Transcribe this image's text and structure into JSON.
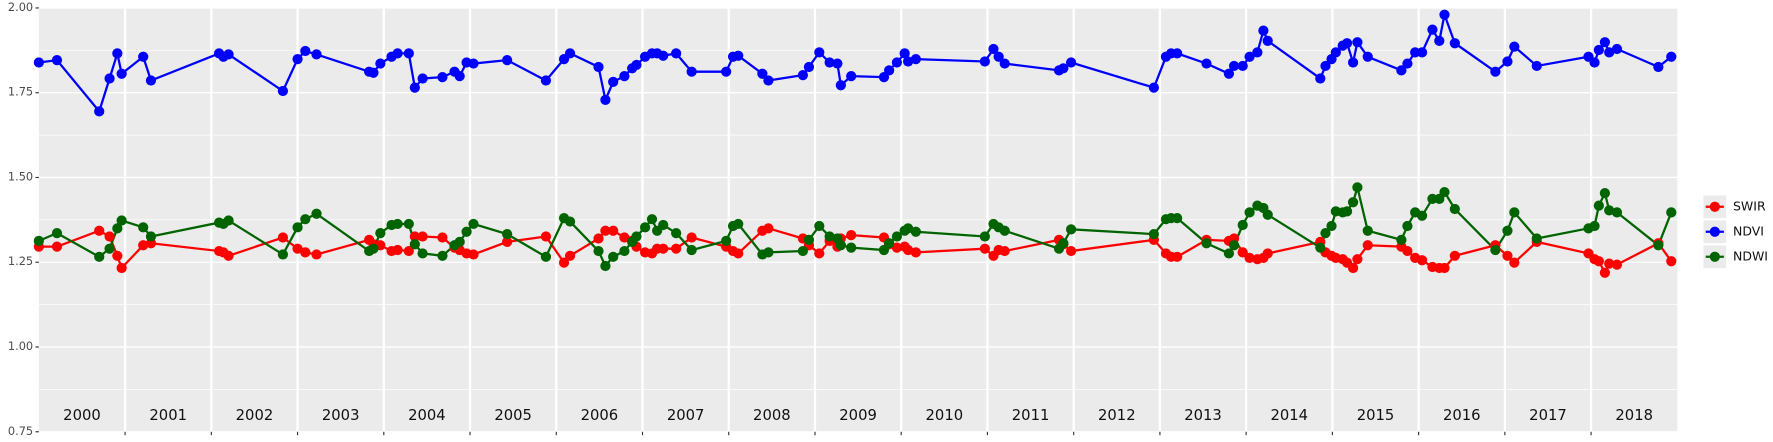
{
  "chart_data": {
    "type": "line",
    "x": [
      2000.0,
      2000.21,
      2000.7,
      2000.82,
      2000.91,
      2000.96,
      2001.21,
      2001.3,
      2002.09,
      2002.14,
      2002.2,
      2002.83,
      2003.0,
      2003.09,
      2003.22,
      2003.83,
      2003.88,
      2003.96,
      2004.09,
      2004.16,
      2004.29,
      2004.36,
      2004.45,
      2004.68,
      2004.82,
      2004.88,
      2004.96,
      2005.04,
      2005.43,
      2005.88,
      2006.09,
      2006.16,
      2006.49,
      2006.57,
      2006.66,
      2006.79,
      2006.88,
      2006.93,
      2007.03,
      2007.11,
      2007.17,
      2007.24,
      2007.39,
      2007.57,
      2007.97,
      2008.05,
      2008.11,
      2008.39,
      2008.46,
      2008.86,
      2008.93,
      2009.05,
      2009.17,
      2009.26,
      2009.3,
      2009.42,
      2009.8,
      2009.86,
      2009.95,
      2010.04,
      2010.08,
      2010.17,
      2010.97,
      2011.07,
      2011.13,
      2011.2,
      2011.83,
      2011.88,
      2011.97,
      2012.93,
      2013.07,
      2013.13,
      2013.2,
      2013.54,
      2013.8,
      2013.86,
      2013.96,
      2014.04,
      2014.13,
      2014.2,
      2014.25,
      2014.86,
      2014.92,
      2014.99,
      2015.04,
      2015.12,
      2015.17,
      2015.24,
      2015.29,
      2015.41,
      2015.8,
      2015.87,
      2015.96,
      2016.04,
      2016.16,
      2016.24,
      2016.3,
      2016.42,
      2016.89,
      2017.03,
      2017.11,
      2017.37,
      2017.97,
      2018.04,
      2018.09,
      2018.16,
      2018.21,
      2018.3,
      2018.78,
      2018.93
    ],
    "series": [
      {
        "name": "SWIR",
        "color": "#ff0000",
        "values": [
          1.296,
          1.296,
          1.343,
          1.326,
          1.269,
          1.233,
          1.3,
          1.306,
          1.283,
          1.279,
          1.269,
          1.323,
          1.29,
          1.279,
          1.273,
          1.316,
          1.303,
          1.3,
          1.283,
          1.286,
          1.283,
          1.326,
          1.326,
          1.323,
          1.293,
          1.286,
          1.276,
          1.273,
          1.31,
          1.326,
          1.249,
          1.269,
          1.32,
          1.343,
          1.343,
          1.323,
          1.313,
          1.296,
          1.279,
          1.276,
          1.29,
          1.29,
          1.29,
          1.323,
          1.296,
          1.283,
          1.276,
          1.343,
          1.35,
          1.32,
          1.3,
          1.276,
          1.313,
          1.296,
          1.32,
          1.33,
          1.323,
          1.303,
          1.293,
          1.296,
          1.286,
          1.279,
          1.29,
          1.269,
          1.286,
          1.283,
          1.316,
          1.303,
          1.283,
          1.316,
          1.276,
          1.266,
          1.266,
          1.316,
          1.313,
          1.32,
          1.279,
          1.263,
          1.259,
          1.263,
          1.276,
          1.31,
          1.279,
          1.269,
          1.263,
          1.259,
          1.249,
          1.233,
          1.259,
          1.3,
          1.296,
          1.283,
          1.263,
          1.256,
          1.236,
          1.233,
          1.233,
          1.269,
          1.3,
          1.269,
          1.249,
          1.31,
          1.276,
          1.259,
          1.253,
          1.219,
          1.246,
          1.243,
          1.306,
          1.253
        ]
      },
      {
        "name": "NDVI",
        "color": "#0000ff",
        "values": [
          1.839,
          1.846,
          1.695,
          1.792,
          1.866,
          1.806,
          1.856,
          1.786,
          1.866,
          1.856,
          1.863,
          1.755,
          1.849,
          1.873,
          1.863,
          1.812,
          1.809,
          1.836,
          1.856,
          1.866,
          1.866,
          1.765,
          1.792,
          1.796,
          1.812,
          1.799,
          1.839,
          1.836,
          1.846,
          1.786,
          1.849,
          1.866,
          1.826,
          1.729,
          1.782,
          1.799,
          1.822,
          1.832,
          1.856,
          1.866,
          1.866,
          1.859,
          1.866,
          1.812,
          1.812,
          1.856,
          1.859,
          1.806,
          1.786,
          1.802,
          1.826,
          1.869,
          1.839,
          1.836,
          1.772,
          1.799,
          1.796,
          1.816,
          1.839,
          1.866,
          1.842,
          1.849,
          1.842,
          1.879,
          1.856,
          1.836,
          1.816,
          1.822,
          1.839,
          1.765,
          1.856,
          1.866,
          1.866,
          1.836,
          1.806,
          1.829,
          1.829,
          1.856,
          1.869,
          1.933,
          1.903,
          1.792,
          1.829,
          1.849,
          1.869,
          1.889,
          1.896,
          1.839,
          1.899,
          1.856,
          1.816,
          1.836,
          1.869,
          1.869,
          1.936,
          1.903,
          1.98,
          1.896,
          1.812,
          1.842,
          1.886,
          1.829,
          1.856,
          1.839,
          1.876,
          1.899,
          1.869,
          1.879,
          1.826,
          1.856
        ]
      },
      {
        "name": "NDWI",
        "color": "#006400",
        "values": [
          1.313,
          1.336,
          1.266,
          1.29,
          1.35,
          1.373,
          1.353,
          1.326,
          1.367,
          1.363,
          1.373,
          1.273,
          1.353,
          1.377,
          1.393,
          1.283,
          1.29,
          1.336,
          1.36,
          1.363,
          1.363,
          1.303,
          1.276,
          1.269,
          1.3,
          1.31,
          1.34,
          1.363,
          1.333,
          1.266,
          1.38,
          1.37,
          1.283,
          1.239,
          1.266,
          1.283,
          1.31,
          1.326,
          1.353,
          1.377,
          1.343,
          1.36,
          1.336,
          1.286,
          1.313,
          1.357,
          1.363,
          1.273,
          1.279,
          1.283,
          1.316,
          1.357,
          1.326,
          1.32,
          1.3,
          1.293,
          1.286,
          1.306,
          1.326,
          1.343,
          1.35,
          1.34,
          1.326,
          1.363,
          1.353,
          1.343,
          1.29,
          1.306,
          1.347,
          1.333,
          1.377,
          1.38,
          1.38,
          1.306,
          1.276,
          1.3,
          1.36,
          1.397,
          1.417,
          1.41,
          1.39,
          1.293,
          1.336,
          1.357,
          1.4,
          1.397,
          1.4,
          1.427,
          1.471,
          1.343,
          1.316,
          1.357,
          1.397,
          1.387,
          1.437,
          1.437,
          1.457,
          1.407,
          1.286,
          1.343,
          1.397,
          1.32,
          1.35,
          1.357,
          1.417,
          1.454,
          1.403,
          1.397,
          1.3,
          1.397
        ]
      }
    ],
    "xlim": [
      2000,
      2019
    ],
    "xticks": [
      {
        "value": 2000.5,
        "label": "2000"
      },
      {
        "value": 2001.5,
        "label": "2001"
      },
      {
        "value": 2002.5,
        "label": "2002"
      },
      {
        "value": 2003.5,
        "label": "2003"
      },
      {
        "value": 2004.5,
        "label": "2004"
      },
      {
        "value": 2005.5,
        "label": "2005"
      },
      {
        "value": 2006.5,
        "label": "2006"
      },
      {
        "value": 2007.5,
        "label": "2007"
      },
      {
        "value": 2008.5,
        "label": "2008"
      },
      {
        "value": 2009.5,
        "label": "2009"
      },
      {
        "value": 2010.5,
        "label": "2010"
      },
      {
        "value": 2011.5,
        "label": "2011"
      },
      {
        "value": 2012.5,
        "label": "2012"
      },
      {
        "value": 2013.5,
        "label": "2013"
      },
      {
        "value": 2014.5,
        "label": "2014"
      },
      {
        "value": 2015.5,
        "label": "2015"
      },
      {
        "value": 2016.5,
        "label": "2016"
      },
      {
        "value": 2017.5,
        "label": "2017"
      },
      {
        "value": 2018.5,
        "label": "2018"
      }
    ],
    "ylim": [
      0.75,
      2
    ],
    "yticks": [
      0.75,
      {
        "value": 1,
        "label": "1.00"
      },
      1.25,
      {
        "value": 1.5,
        "label": "1.50"
      },
      1.75,
      {
        "value": 2,
        "label": "2.00"
      }
    ],
    "grid": true,
    "legend": "right"
  }
}
